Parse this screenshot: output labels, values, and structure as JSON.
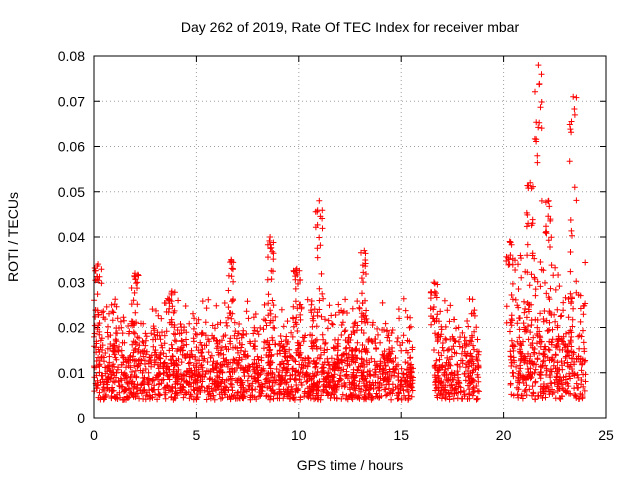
{
  "chart_data": {
    "type": "scatter",
    "title": "Day 262 of 2019, Rate Of TEC Index for receiver mbar",
    "xlabel": "GPS time / hours",
    "ylabel": "ROTI / TECUs",
    "xlim": [
      0,
      25
    ],
    "ylim": [
      0,
      0.08
    ],
    "xticks": [
      "0",
      "5",
      "10",
      "15",
      "20",
      "25"
    ],
    "yticks": [
      "0",
      "0.01",
      "0.02",
      "0.03",
      "0.04",
      "0.05",
      "0.06",
      "0.07",
      "0.08"
    ],
    "grid": true,
    "marker": "plus",
    "color": "#ff0000",
    "series": [
      {
        "name": "ROTI",
        "segments": [
          {
            "x_start": 0.0,
            "x_end": 15.6,
            "typical_min": 0.004,
            "typical_max": 0.022,
            "median": 0.011
          },
          {
            "x_start": 16.6,
            "x_end": 18.8,
            "typical_min": 0.004,
            "typical_max": 0.022,
            "median": 0.011
          },
          {
            "x_start": 20.3,
            "x_end": 24.0,
            "typical_min": 0.004,
            "typical_max": 0.03,
            "median": 0.013
          }
        ],
        "peaks": [
          {
            "x": 0.2,
            "y": 0.034
          },
          {
            "x": 2.0,
            "y": 0.032
          },
          {
            "x": 3.8,
            "y": 0.028
          },
          {
            "x": 6.7,
            "y": 0.035
          },
          {
            "x": 8.6,
            "y": 0.04
          },
          {
            "x": 9.9,
            "y": 0.033
          },
          {
            "x": 11.0,
            "y": 0.048
          },
          {
            "x": 13.2,
            "y": 0.037
          },
          {
            "x": 16.6,
            "y": 0.03
          },
          {
            "x": 20.3,
            "y": 0.039
          },
          {
            "x": 21.3,
            "y": 0.052
          },
          {
            "x": 21.7,
            "y": 0.078
          },
          {
            "x": 22.2,
            "y": 0.048
          },
          {
            "x": 23.4,
            "y": 0.071
          }
        ]
      }
    ]
  }
}
